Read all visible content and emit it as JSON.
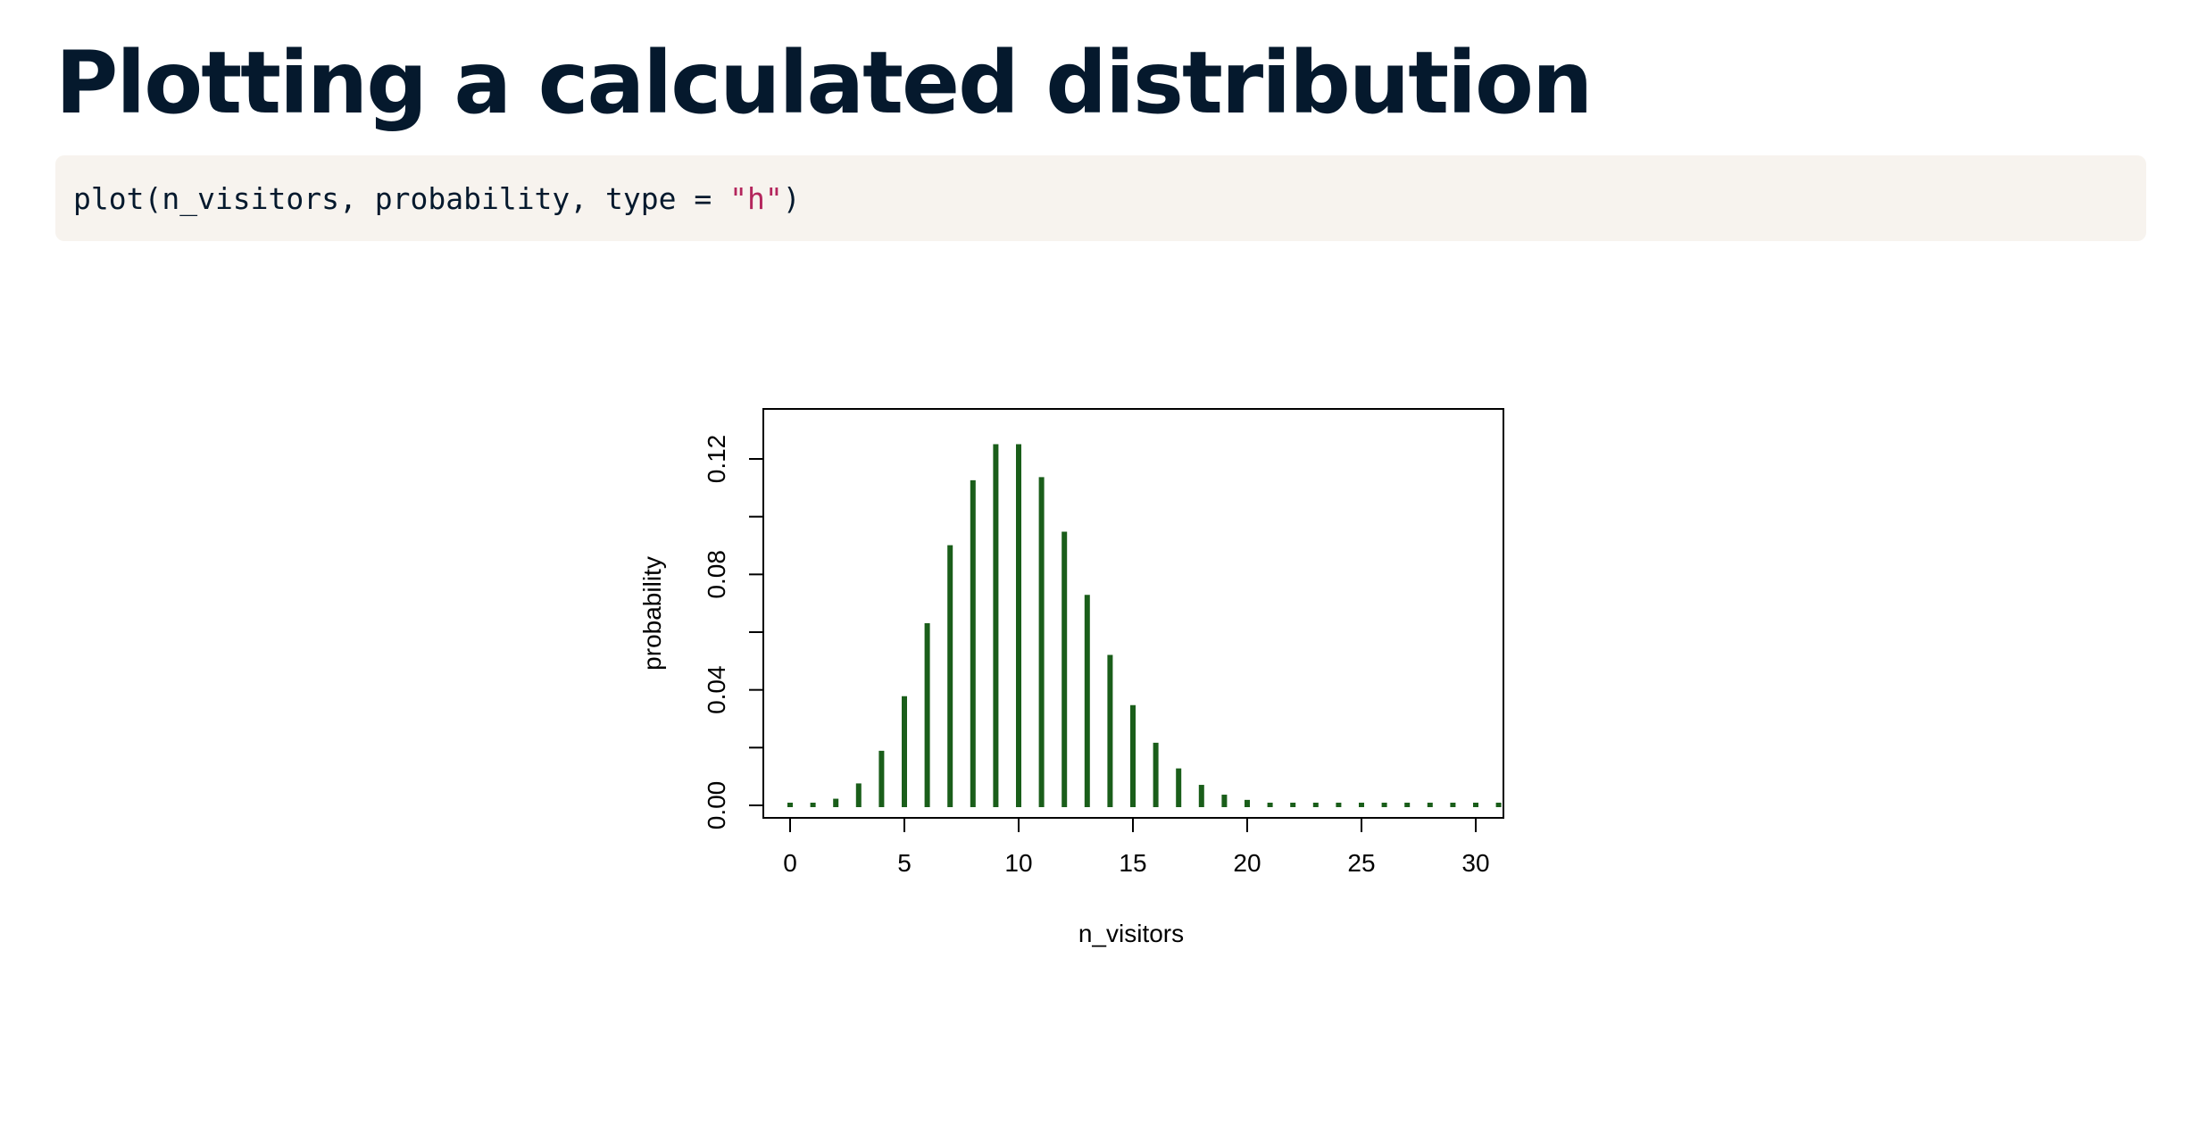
{
  "page": {
    "title": "Plotting a calculated distribution"
  },
  "code": {
    "prefix": "plot(n_visitors, probability, type = ",
    "string": "\"h\"",
    "suffix": ")"
  },
  "chart_data": {
    "type": "line",
    "style": "vertical-histogram-lines",
    "line_color": "#1a5e1a",
    "title": "",
    "xlabel": "n_visitors",
    "ylabel": "probability",
    "xlim": [
      0,
      31
    ],
    "ylim": [
      0,
      0.132
    ],
    "x_ticks": [
      0,
      5,
      10,
      15,
      20,
      25,
      30
    ],
    "x_tick_labels": [
      "0",
      "5",
      "10",
      "15",
      "20",
      "25",
      "30"
    ],
    "y_ticks": [
      0.0,
      0.02,
      0.04,
      0.06,
      0.08,
      0.1,
      0.12
    ],
    "y_tick_labels": [
      "0.00",
      "0.04",
      "0.08",
      "0.12"
    ],
    "y_labeled_ticks": [
      0.0,
      0.04,
      0.08,
      0.12
    ],
    "grid": false,
    "legend": "none",
    "x": [
      0,
      1,
      2,
      3,
      4,
      5,
      6,
      7,
      8,
      9,
      10,
      11,
      12,
      13,
      14,
      15,
      16,
      17,
      18,
      19,
      20,
      21,
      22,
      23,
      24,
      25,
      26,
      27,
      28,
      29,
      30,
      31
    ],
    "y": [
      0.0,
      0.0005,
      0.0023,
      0.0076,
      0.0189,
      0.0378,
      0.0631,
      0.0901,
      0.1126,
      0.1251,
      0.1251,
      0.1137,
      0.0948,
      0.0729,
      0.0521,
      0.0347,
      0.0217,
      0.0128,
      0.0071,
      0.0037,
      0.0019,
      0.0009,
      0.0004,
      0.0002,
      0.0001,
      0.0,
      0.0,
      0.0,
      0.0,
      0.0,
      0.0,
      0.0
    ]
  }
}
